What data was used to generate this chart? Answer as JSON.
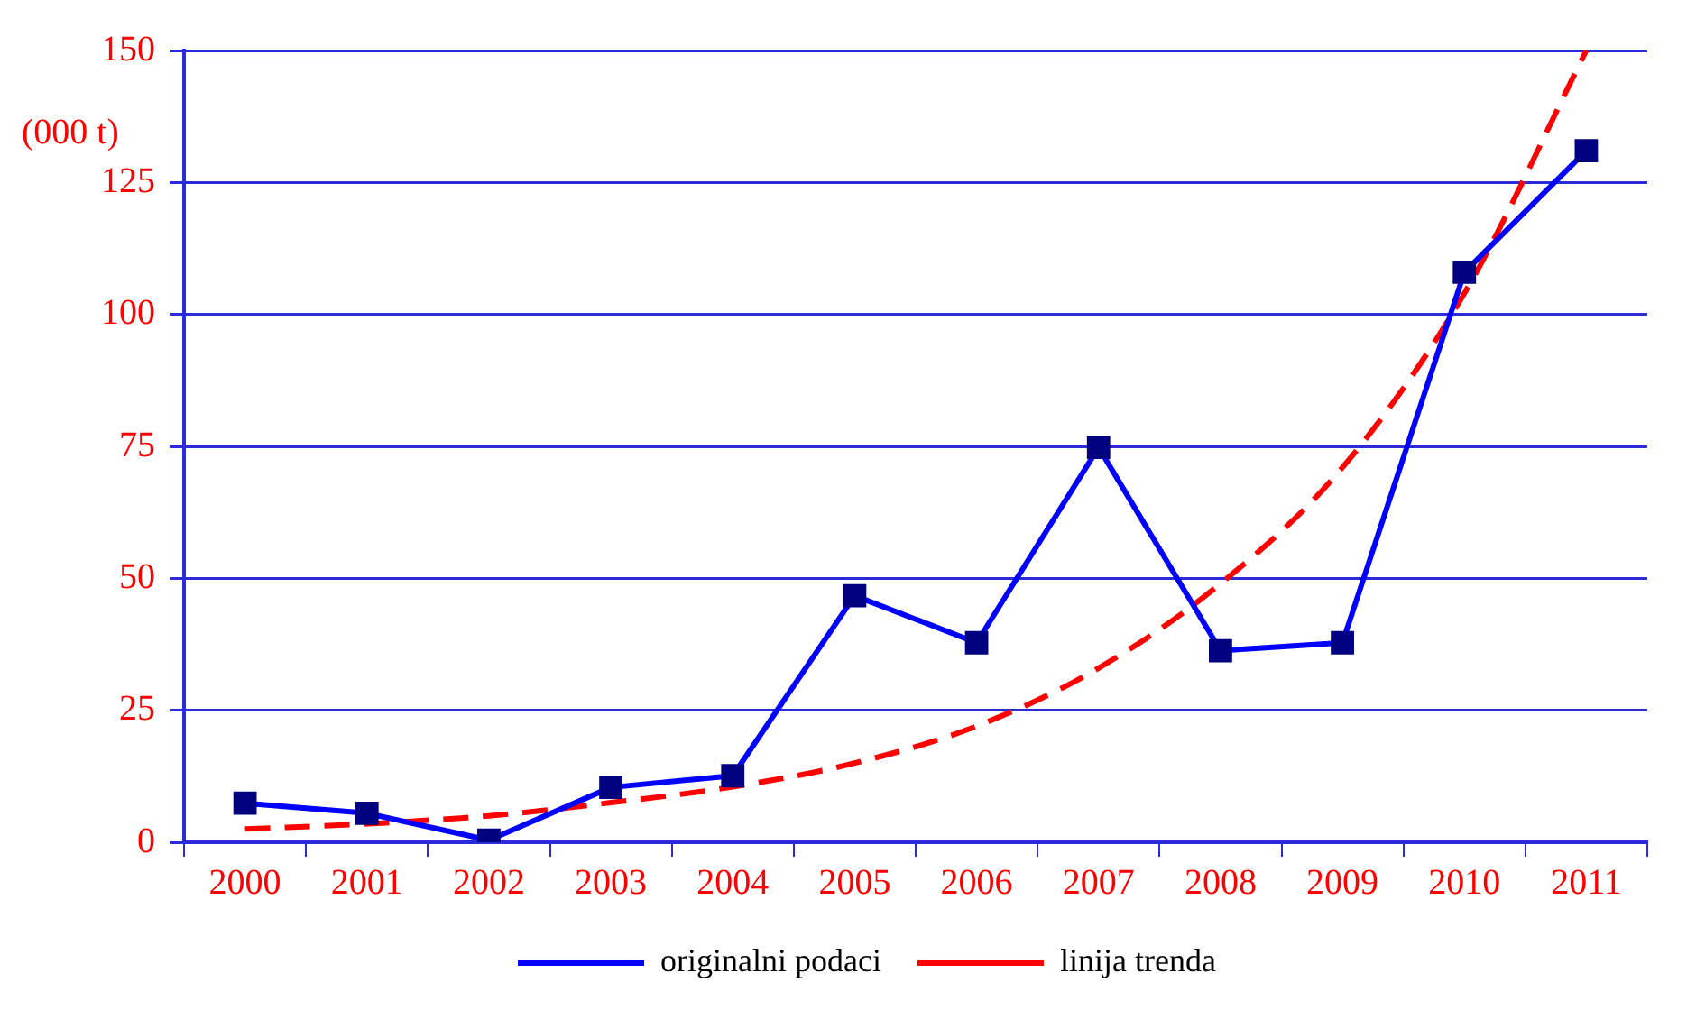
{
  "chart_data": {
    "type": "line",
    "ylabel": "(000 t)",
    "categories": [
      "2000",
      "2001",
      "2002",
      "2003",
      "2004",
      "2005",
      "2006",
      "2007",
      "2008",
      "2009",
      "2010",
      "2011"
    ],
    "series": [
      {
        "name": "originalni podaci",
        "color": "#0000ff",
        "values": [
          7.4,
          5.5,
          0.4,
          10.4,
          12.6,
          46.7,
          37.8,
          74.8,
          36.3,
          37.8,
          108,
          131
        ],
        "marker": "square",
        "line_style": "solid"
      },
      {
        "name": "linija trenda",
        "color": "#ff0000",
        "values": [
          2.5,
          3.5,
          5,
          7.5,
          10.5,
          15,
          22,
          33,
          49,
          71,
          104,
          150
        ],
        "marker": "none",
        "line_style": "dashed"
      }
    ],
    "ylim": [
      0,
      150
    ],
    "yticks": [
      0,
      25,
      50,
      75,
      100,
      125,
      150
    ],
    "grid": "y",
    "legend": "bottom"
  }
}
